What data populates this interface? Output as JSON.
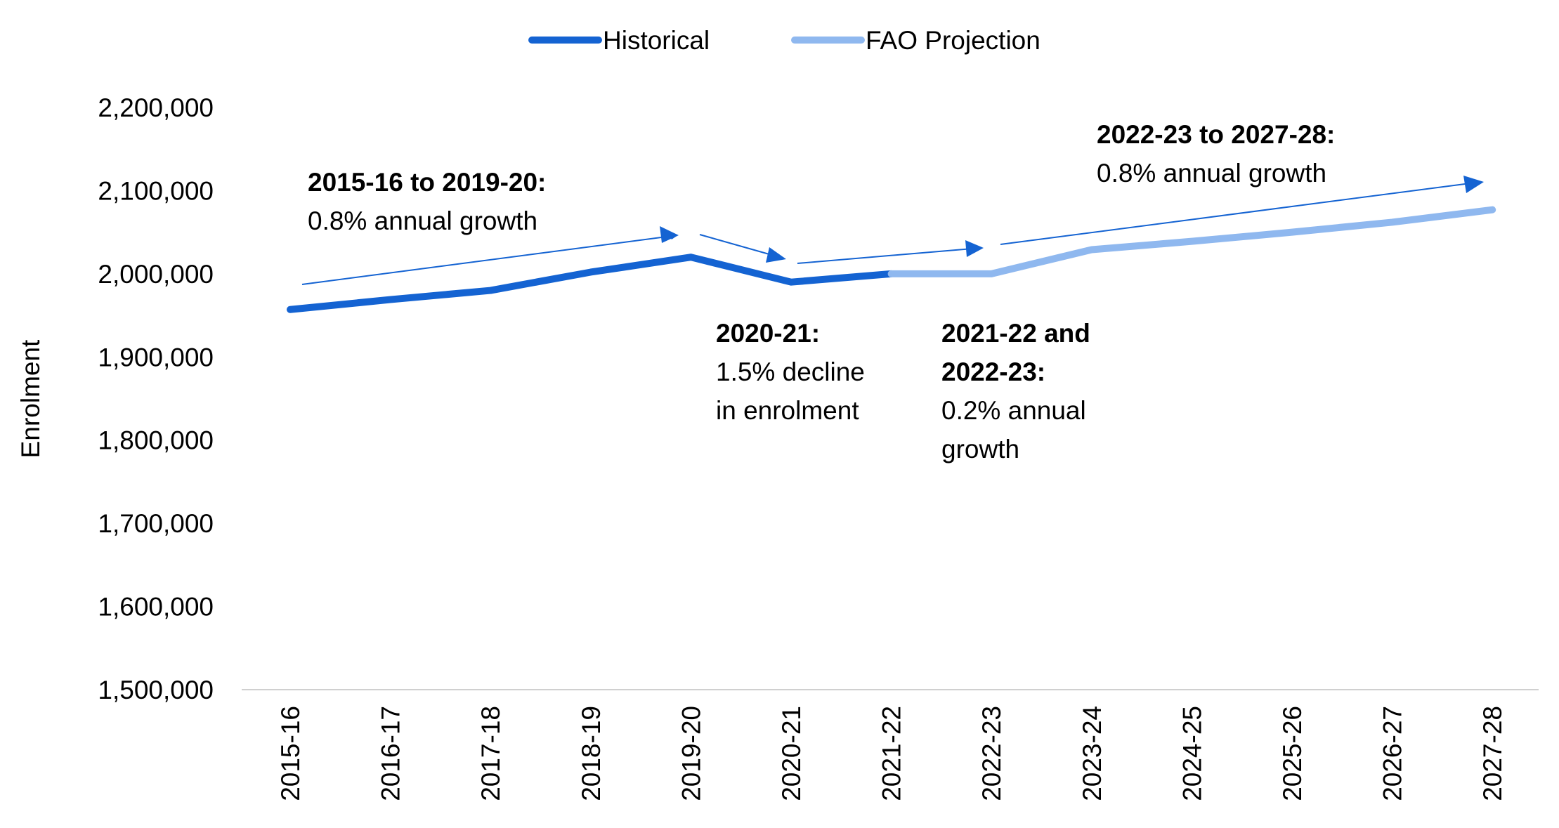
{
  "legend": {
    "historical": "Historical",
    "projection": "FAO Projection"
  },
  "colors": {
    "historical": "#1463d2",
    "projection": "#8fb8ef",
    "arrow": "#1463d2",
    "axis": "#d0d0d0"
  },
  "chart_data": {
    "type": "line",
    "categories": [
      "2015-16",
      "2016-17",
      "2017-18",
      "2018-19",
      "2019-20",
      "2020-21",
      "2021-22",
      "2022-23",
      "2023-24",
      "2024-25",
      "2025-26",
      "2026-27",
      "2027-28"
    ],
    "ylabel": "Enrolment",
    "ylim": [
      1500000,
      2200000
    ],
    "yticks": [
      2200000,
      2100000,
      2000000,
      1900000,
      1800000,
      1700000,
      1600000,
      1500000
    ],
    "ytick_labels": [
      "2,200,000",
      "2,100,000",
      "2,000,000",
      "1,900,000",
      "1,800,000",
      "1,700,000",
      "1,600,000",
      "1,500,000"
    ],
    "series": [
      {
        "name": "Historical",
        "values": [
          1957000,
          1969000,
          1980000,
          2002000,
          2020000,
          1990000,
          2000000,
          null,
          null,
          null,
          null,
          null,
          null
        ]
      },
      {
        "name": "FAO Projection",
        "values": [
          null,
          null,
          null,
          null,
          null,
          null,
          2000000,
          2000000,
          2029000,
          2039000,
          2050000,
          2062000,
          2077000
        ]
      }
    ],
    "annotations": [
      {
        "bold": "2015-16 to 2019-20:",
        "lines": [
          "0.8% annual growth"
        ]
      },
      {
        "bold_lines": [
          "2020-21:"
        ],
        "lines": [
          "1.5% decline",
          "in enrolment"
        ]
      },
      {
        "bold_lines": [
          "2021-22 and",
          "2022-23:"
        ],
        "lines": [
          "0.2% annual",
          "growth"
        ]
      },
      {
        "bold": "2022-23 to 2027-28:",
        "lines": [
          "0.8% annual growth"
        ]
      }
    ],
    "grid": false,
    "legend_position": "top-center"
  }
}
